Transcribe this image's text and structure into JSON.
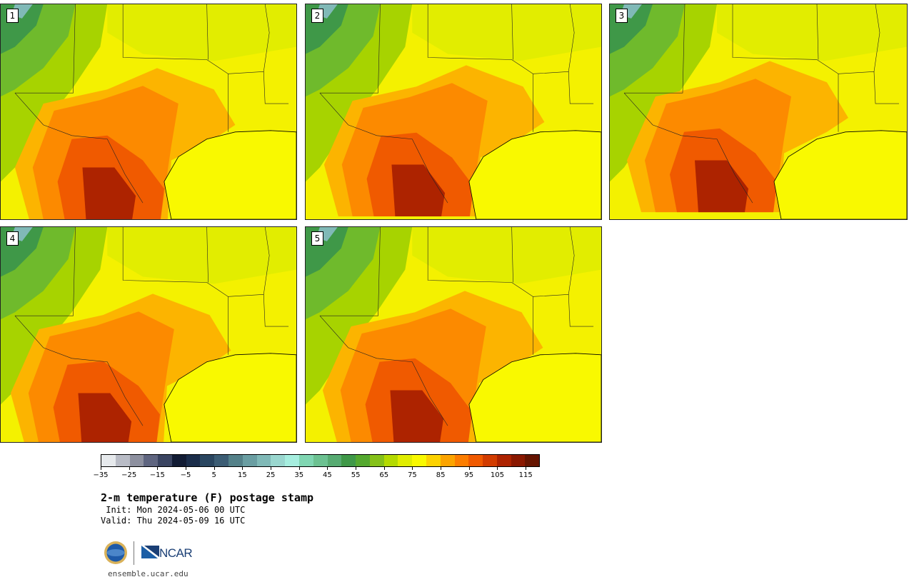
{
  "panels": [
    {
      "label": "1",
      "variant": 0
    },
    {
      "label": "2",
      "variant": 1
    },
    {
      "label": "3",
      "variant": 2
    },
    {
      "label": "4",
      "variant": 3
    },
    {
      "label": "5",
      "variant": 4
    }
  ],
  "colorbar": {
    "colors": [
      "#e6e9ec",
      "#b9bcc6",
      "#8d909f",
      "#5f6580",
      "#3a4461",
      "#121c34",
      "#1b2d4a",
      "#2a4660",
      "#3c5d74",
      "#548189",
      "#6a9ea2",
      "#80b9b7",
      "#9ad7cf",
      "#a6eedf",
      "#80d6b2",
      "#6cc191",
      "#57ab72",
      "#3f9848",
      "#54a82f",
      "#85c119",
      "#b4da00",
      "#e0ed00",
      "#f9f900",
      "#fcd200",
      "#fca400",
      "#fc7d00",
      "#f05a00",
      "#d23c00",
      "#ad2300",
      "#8a1800",
      "#651400"
    ],
    "tick_labels": [
      "−35",
      "−25",
      "−15",
      "−5",
      "5",
      "15",
      "25",
      "35",
      "45",
      "55",
      "65",
      "75",
      "85",
      "95",
      "105",
      "115"
    ]
  },
  "title": "2-m temperature (F) postage stamp",
  "init": " Init: Mon 2024-05-06 00 UTC",
  "valid": "Valid: Thu 2024-05-09 16 UTC",
  "logos": {
    "nsf": "NSF",
    "ncar": "NCAR"
  },
  "site": "ensemble.ucar.edu"
}
